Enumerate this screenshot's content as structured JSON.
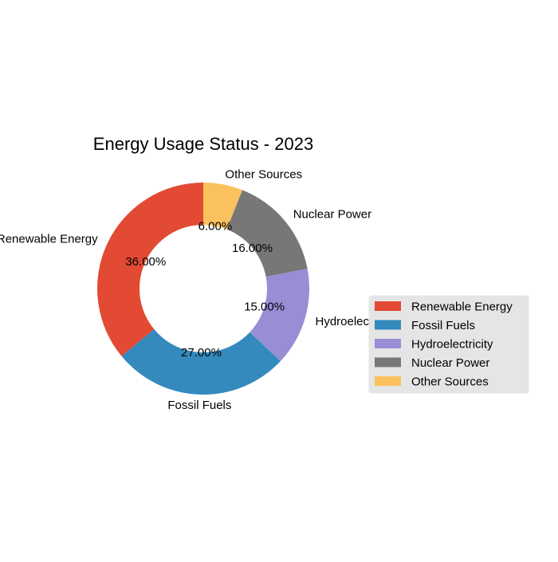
{
  "chart_data": {
    "type": "pie",
    "title": "Energy Usage Status - 2023",
    "categories": [
      "Renewable Energy",
      "Fossil Fuels",
      "Hydroelectricity",
      "Nuclear Power",
      "Other Sources"
    ],
    "values": [
      36,
      27,
      15,
      16,
      6
    ],
    "percent_labels": [
      "36.00%",
      "27.00%",
      "15.00%",
      "16.00%",
      "6.00%"
    ],
    "colors": [
      "#E24A33",
      "#348ABD",
      "#988ED5",
      "#777777",
      "#FBC15E"
    ],
    "donut": true,
    "start_angle_deg": 90,
    "direction": "counterclockwise",
    "legend": {
      "entries": [
        "Renewable Energy",
        "Fossil Fuels",
        "Hydroelectricity",
        "Nuclear Power",
        "Other Sources"
      ],
      "placement": "right"
    }
  }
}
